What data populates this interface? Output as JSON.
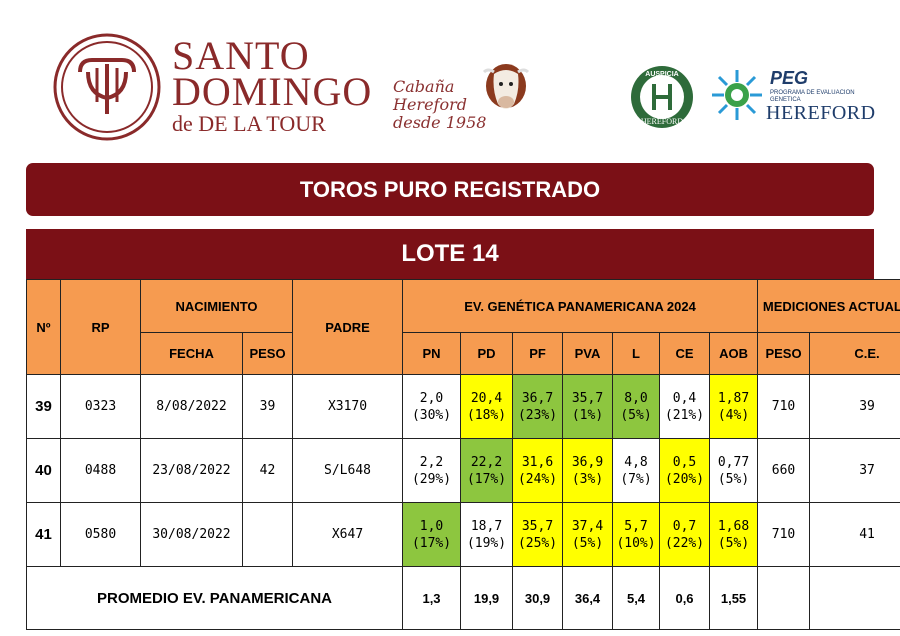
{
  "header": {
    "brand_line1": "SANTO",
    "brand_line2": "DOMINGO",
    "brand_line3": "de DE LA TOUR",
    "cabana_lines": [
      "Cabaña",
      "Hereford",
      "desde 1958"
    ],
    "badge_top": "AUSPICIA",
    "badge_bottom": "HEREFORD",
    "peg_title": "PEG",
    "peg_sub": "PROGRAMA DE EVALUACION GENETICA",
    "peg_hereford": "HEREFORD"
  },
  "colors": {
    "brand": "#7b1016",
    "header_cell": "#f69b50",
    "highlight_green": "#8dc63f",
    "highlight_yellow": "#ffff00"
  },
  "banner_title": "TOROS PURO REGISTRADO",
  "lot_title": "LOTE 14",
  "table": {
    "headers": {
      "n": "Nº",
      "rp": "RP",
      "nacimiento": "NACIMIENTO",
      "fecha": "FECHA",
      "peso": "PESO",
      "padre": "PADRE",
      "ev_group": "EV. GENÉTICA PANAMERICANA 2024",
      "ev_cols": [
        "PN",
        "PD",
        "PF",
        "PVA",
        "L",
        "CE",
        "AOB"
      ],
      "med_group": "MEDICIONES ACTUALES",
      "med_cols": [
        "PESO",
        "C.E."
      ]
    },
    "rows": [
      {
        "n": "39",
        "rp": "0323",
        "fecha": "8/08/2022",
        "peso_nac": "39",
        "padre": "X3170",
        "ev": [
          {
            "v": "2,0",
            "p": "(30%)",
            "hl": ""
          },
          {
            "v": "20,4",
            "p": "(18%)",
            "hl": "y"
          },
          {
            "v": "36,7",
            "p": "(23%)",
            "hl": "g"
          },
          {
            "v": "35,7",
            "p": "(1%)",
            "hl": "g"
          },
          {
            "v": "8,0",
            "p": "(5%)",
            "hl": "g"
          },
          {
            "v": "0,4",
            "p": "(21%)",
            "hl": ""
          },
          {
            "v": "1,87",
            "p": "(4%)",
            "hl": "y"
          }
        ],
        "peso": "710",
        "ce": "39"
      },
      {
        "n": "40",
        "rp": "0488",
        "fecha": "23/08/2022",
        "peso_nac": "42",
        "padre": "S/L648",
        "ev": [
          {
            "v": "2,2",
            "p": "(29%)",
            "hl": ""
          },
          {
            "v": "22,2",
            "p": "(17%)",
            "hl": "g"
          },
          {
            "v": "31,6",
            "p": "(24%)",
            "hl": "y"
          },
          {
            "v": "36,9",
            "p": "(3%)",
            "hl": "y"
          },
          {
            "v": "4,8",
            "p": "(7%)",
            "hl": ""
          },
          {
            "v": "0,5",
            "p": "(20%)",
            "hl": "y"
          },
          {
            "v": "0,77",
            "p": "(5%)",
            "hl": ""
          }
        ],
        "peso": "660",
        "ce": "37"
      },
      {
        "n": "41",
        "rp": "0580",
        "fecha": "30/08/2022",
        "peso_nac": "",
        "padre": "X647",
        "ev": [
          {
            "v": "1,0 (17%)",
            "p": "",
            "hl": "g"
          },
          {
            "v": "18,7",
            "p": "(19%)",
            "hl": ""
          },
          {
            "v": "35,7",
            "p": "(25%)",
            "hl": "y"
          },
          {
            "v": "37,4",
            "p": "(5%)",
            "hl": "y"
          },
          {
            "v": "5,7",
            "p": "(10%)",
            "hl": "y"
          },
          {
            "v": "0,7",
            "p": "(22%)",
            "hl": "y"
          },
          {
            "v": "1,68",
            "p": "(5%)",
            "hl": "y"
          }
        ],
        "peso": "710",
        "ce": "41"
      }
    ],
    "average": {
      "label": "PROMEDIO EV. PANAMERICANA",
      "values": [
        "1,3",
        "19,9",
        "30,9",
        "36,4",
        "5,4",
        "0,6",
        "1,55"
      ]
    }
  }
}
